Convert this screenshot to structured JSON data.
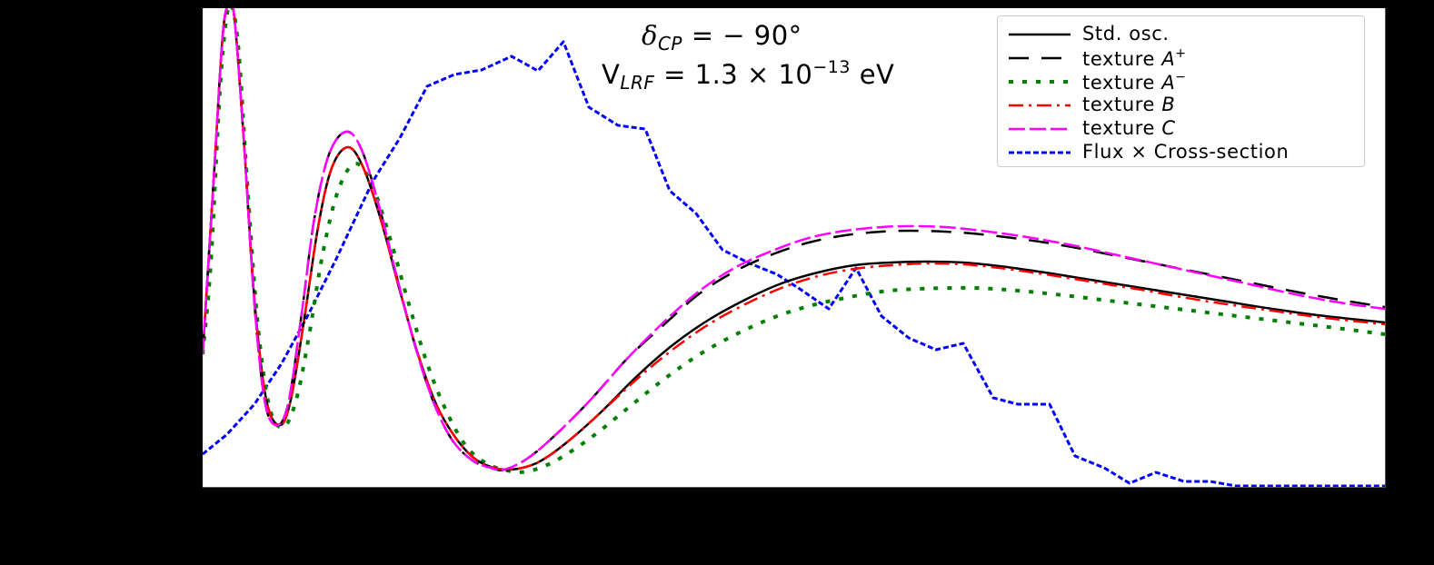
{
  "figure": {
    "background": "#000000",
    "axes_background": "#ffffff"
  },
  "annotations": {
    "delta_cp": {
      "symbol": "δ",
      "sub": "CP",
      "rest": " = − 90°"
    },
    "v_lrf": {
      "symbol": "V",
      "sub": "LRF",
      "rest": " = 1.3 × 10",
      "sup": "−13",
      "unit": " eV"
    }
  },
  "legend": {
    "items": [
      {
        "key": "std",
        "label": "Std. osc.",
        "label_italic": "",
        "sup": ""
      },
      {
        "key": "aplus",
        "label": "texture ",
        "label_italic": "A",
        "sup": "+"
      },
      {
        "key": "aminus",
        "label": "texture ",
        "label_italic": "A",
        "sup": "−"
      },
      {
        "key": "b",
        "label": "texture ",
        "label_italic": "B",
        "sup": ""
      },
      {
        "key": "c",
        "label": "texture ",
        "label_italic": "C",
        "sup": ""
      },
      {
        "key": "flux",
        "label": "Flux × Cross-section",
        "label_italic": "",
        "sup": ""
      }
    ]
  },
  "chart_data": {
    "type": "line",
    "title": "",
    "xlabel": "",
    "ylabel": "",
    "units_note": "No tick labels visible; coordinates are relative plot units (x: 0-1301 left→right, y: 0-527 bottom→top)",
    "xlim": [
      0,
      1301
    ],
    "ylim": [
      0,
      527
    ],
    "grid": false,
    "legend_position": "upper right",
    "annotations": [
      "δCP = − 90°",
      "VLRF = 1.3 × 10^−13 eV"
    ],
    "series": [
      {
        "name": "Std. osc.",
        "key": "std",
        "color": "#000000",
        "style": "solid",
        "points": [
          [
            0,
            146
          ],
          [
            12,
            336
          ],
          [
            22,
            496
          ],
          [
            29,
            531
          ],
          [
            35,
            516
          ],
          [
            45,
            386
          ],
          [
            57,
            206
          ],
          [
            70,
            96
          ],
          [
            85,
            68
          ],
          [
            97,
            96
          ],
          [
            112,
            186
          ],
          [
            127,
            286
          ],
          [
            142,
            351
          ],
          [
            160,
            374
          ],
          [
            177,
            351
          ],
          [
            197,
            291
          ],
          [
            217,
            216
          ],
          [
            237,
            146
          ],
          [
            257,
            91
          ],
          [
            277,
            56
          ],
          [
            297,
            33
          ],
          [
            317,
            22
          ],
          [
            339,
            19
          ],
          [
            367,
            26
          ],
          [
            397,
            46
          ],
          [
            437,
            81
          ],
          [
            477,
            121
          ],
          [
            517,
            156
          ],
          [
            557,
            184
          ],
          [
            597,
            206
          ],
          [
            637,
            224
          ],
          [
            677,
            236
          ],
          [
            717,
            244
          ],
          [
            757,
            247
          ],
          [
            797,
            248
          ],
          [
            837,
            247
          ],
          [
            877,
            243
          ],
          [
            927,
            236
          ],
          [
            977,
            228
          ],
          [
            1027,
            220
          ],
          [
            1077,
            212
          ],
          [
            1127,
            204
          ],
          [
            1177,
            196
          ],
          [
            1227,
            189
          ],
          [
            1301,
            181
          ]
        ]
      },
      {
        "name": "texture A+",
        "key": "aplus",
        "color": "#000000",
        "style": "dashed",
        "points": [
          [
            0,
            146
          ],
          [
            12,
            336
          ],
          [
            22,
            496
          ],
          [
            29,
            531
          ],
          [
            35,
            516
          ],
          [
            45,
            386
          ],
          [
            57,
            201
          ],
          [
            69,
            91
          ],
          [
            83,
            68
          ],
          [
            95,
            96
          ],
          [
            109,
            191
          ],
          [
            123,
            296
          ],
          [
            139,
            366
          ],
          [
            158,
            391
          ],
          [
            175,
            371
          ],
          [
            195,
            306
          ],
          [
            215,
            226
          ],
          [
            235,
            151
          ],
          [
            255,
            91
          ],
          [
            275,
            51
          ],
          [
            297,
            29
          ],
          [
            317,
            21
          ],
          [
            332,
            19
          ],
          [
            357,
            31
          ],
          [
            387,
            56
          ],
          [
            427,
            96
          ],
          [
            467,
            141
          ],
          [
            507,
            178
          ],
          [
            547,
            213
          ],
          [
            587,
            238
          ],
          [
            627,
            256
          ],
          [
            667,
            269
          ],
          [
            707,
            277
          ],
          [
            747,
            281
          ],
          [
            777,
            282
          ],
          [
            817,
            281
          ],
          [
            857,
            278
          ],
          [
            907,
            272
          ],
          [
            957,
            264
          ],
          [
            1007,
            254
          ],
          [
            1057,
            244
          ],
          [
            1107,
            234
          ],
          [
            1157,
            224
          ],
          [
            1207,
            214
          ],
          [
            1257,
            205
          ],
          [
            1301,
            198
          ]
        ]
      },
      {
        "name": "texture A−",
        "key": "aminus",
        "color": "#008000",
        "style": "dotted",
        "points": [
          [
            0,
            146
          ],
          [
            9,
            246
          ],
          [
            19,
            436
          ],
          [
            27,
            521
          ],
          [
            33,
            526
          ],
          [
            40,
            476
          ],
          [
            49,
            336
          ],
          [
            61,
            176
          ],
          [
            74,
            86
          ],
          [
            89,
            66
          ],
          [
            103,
            96
          ],
          [
            117,
            166
          ],
          [
            132,
            256
          ],
          [
            149,
            326
          ],
          [
            168,
            356
          ],
          [
            187,
            331
          ],
          [
            207,
            271
          ],
          [
            227,
            201
          ],
          [
            247,
            136
          ],
          [
            267,
            86
          ],
          [
            289,
            46
          ],
          [
            312,
            26
          ],
          [
            335,
            18
          ],
          [
            357,
            17
          ],
          [
            387,
            28
          ],
          [
            427,
            54
          ],
          [
            467,
            86
          ],
          [
            507,
            118
          ],
          [
            547,
            146
          ],
          [
            587,
            168
          ],
          [
            627,
            186
          ],
          [
            667,
            199
          ],
          [
            707,
            208
          ],
          [
            747,
            215
          ],
          [
            787,
            218
          ],
          [
            847,
            219
          ],
          [
            897,
            216
          ],
          [
            947,
            211
          ],
          [
            997,
            205
          ],
          [
            1047,
            199
          ],
          [
            1097,
            193
          ],
          [
            1147,
            187
          ],
          [
            1197,
            181
          ],
          [
            1247,
            175
          ],
          [
            1301,
            168
          ]
        ]
      },
      {
        "name": "texture B",
        "key": "b",
        "color": "#ff0000",
        "style": "dashdot",
        "points": [
          [
            0,
            146
          ],
          [
            12,
            336
          ],
          [
            22,
            496
          ],
          [
            29,
            531
          ],
          [
            35,
            516
          ],
          [
            45,
            386
          ],
          [
            57,
            206
          ],
          [
            70,
            96
          ],
          [
            85,
            68
          ],
          [
            97,
            96
          ],
          [
            112,
            186
          ],
          [
            127,
            286
          ],
          [
            142,
            351
          ],
          [
            160,
            374
          ],
          [
            177,
            351
          ],
          [
            197,
            291
          ],
          [
            217,
            216
          ],
          [
            237,
            146
          ],
          [
            257,
            91
          ],
          [
            277,
            56
          ],
          [
            297,
            33
          ],
          [
            317,
            22
          ],
          [
            339,
            19
          ],
          [
            367,
            26
          ],
          [
            397,
            46
          ],
          [
            437,
            81
          ],
          [
            477,
            118
          ],
          [
            517,
            151
          ],
          [
            557,
            179
          ],
          [
            597,
            201
          ],
          [
            637,
            219
          ],
          [
            677,
            232
          ],
          [
            717,
            240
          ],
          [
            757,
            244
          ],
          [
            797,
            246
          ],
          [
            837,
            245
          ],
          [
            877,
            241
          ],
          [
            927,
            234
          ],
          [
            977,
            226
          ],
          [
            1027,
            218
          ],
          [
            1077,
            209
          ],
          [
            1127,
            201
          ],
          [
            1177,
            194
          ],
          [
            1227,
            187
          ],
          [
            1301,
            179
          ]
        ]
      },
      {
        "name": "texture C",
        "key": "c",
        "color": "#ff00ff",
        "style": "longdash",
        "points": [
          [
            0,
            146
          ],
          [
            12,
            336
          ],
          [
            22,
            496
          ],
          [
            29,
            531
          ],
          [
            35,
            516
          ],
          [
            45,
            386
          ],
          [
            57,
            201
          ],
          [
            69,
            91
          ],
          [
            83,
            68
          ],
          [
            95,
            96
          ],
          [
            109,
            191
          ],
          [
            123,
            296
          ],
          [
            139,
            366
          ],
          [
            158,
            391
          ],
          [
            175,
            371
          ],
          [
            195,
            306
          ],
          [
            215,
            226
          ],
          [
            235,
            151
          ],
          [
            255,
            91
          ],
          [
            275,
            51
          ],
          [
            297,
            29
          ],
          [
            317,
            21
          ],
          [
            332,
            19
          ],
          [
            357,
            31
          ],
          [
            387,
            56
          ],
          [
            427,
            96
          ],
          [
            467,
            141
          ],
          [
            507,
            181
          ],
          [
            547,
            216
          ],
          [
            587,
            242
          ],
          [
            627,
            260
          ],
          [
            667,
            274
          ],
          [
            707,
            282
          ],
          [
            747,
            286
          ],
          [
            777,
            287
          ],
          [
            817,
            286
          ],
          [
            857,
            282
          ],
          [
            907,
            275
          ],
          [
            957,
            266
          ],
          [
            1007,
            255
          ],
          [
            1057,
            244
          ],
          [
            1107,
            233
          ],
          [
            1157,
            222
          ],
          [
            1207,
            211
          ],
          [
            1257,
            202
          ],
          [
            1301,
            196
          ]
        ]
      },
      {
        "name": "Flux × Cross-section",
        "key": "flux",
        "color": "#0000ff",
        "style": "dotted-fine",
        "points": [
          [
            0,
            36
          ],
          [
            27,
            58
          ],
          [
            57,
            91
          ],
          [
            87,
            136
          ],
          [
            117,
            191
          ],
          [
            147,
            251
          ],
          [
            187,
            336
          ],
          [
            217,
            384
          ],
          [
            247,
            441
          ],
          [
            277,
            454
          ],
          [
            307,
            459
          ],
          [
            340,
            474
          ],
          [
            369,
            458
          ],
          [
            397,
            490
          ],
          [
            425,
            418
          ],
          [
            457,
            398
          ],
          [
            487,
            394
          ],
          [
            514,
            326
          ],
          [
            543,
            301
          ],
          [
            572,
            261
          ],
          [
            602,
            246
          ],
          [
            632,
            234
          ],
          [
            657,
            218
          ],
          [
            689,
            196
          ],
          [
            719,
            241
          ],
          [
            747,
            188
          ],
          [
            777,
            164
          ],
          [
            807,
            151
          ],
          [
            837,
            158
          ],
          [
            870,
            98
          ],
          [
            897,
            91
          ],
          [
            932,
            91
          ],
          [
            960,
            34
          ],
          [
            992,
            21
          ],
          [
            1020,
            4
          ],
          [
            1049,
            16
          ],
          [
            1080,
            6
          ],
          [
            1109,
            6
          ],
          [
            1137,
            1
          ],
          [
            1301,
            1
          ]
        ]
      }
    ]
  }
}
